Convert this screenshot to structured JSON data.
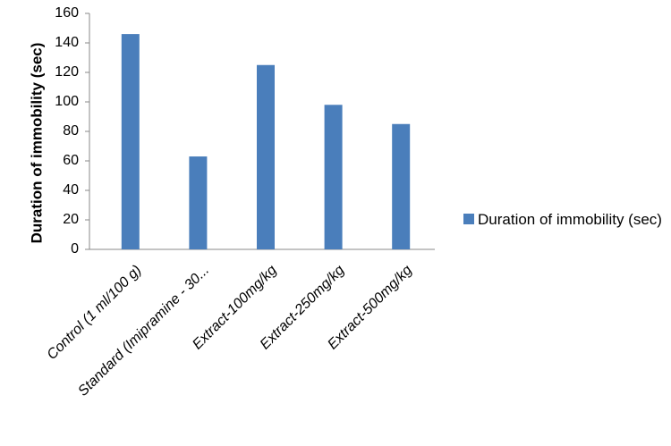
{
  "chart_data": {
    "type": "bar",
    "y_label": "Duration of immobility (sec)",
    "categories": [
      "Control (1 ml/100 g)",
      "Standard (Imipramine - 30...",
      "Extract-100mg/kg",
      "Extract-250mg/kg",
      "Extract-500mg/kg"
    ],
    "series": [
      {
        "name": "Duration of immobility (sec)",
        "color": "#4a7ebb",
        "values": [
          146,
          63,
          125,
          98,
          85
        ]
      }
    ],
    "ylim": [
      0,
      160
    ],
    "yticks": [
      0,
      20,
      40,
      60,
      80,
      100,
      120,
      140,
      160
    ],
    "grid": false,
    "legend": "right"
  }
}
